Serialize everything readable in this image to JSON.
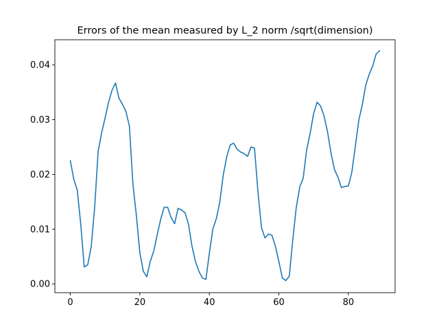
{
  "chart_data": {
    "type": "line",
    "title": "Errors of the mean measured by L_2 norm /sqrt(dimension)",
    "xlabel": "",
    "ylabel": "",
    "xlim": [
      -4.45,
      93.45
    ],
    "ylim": [
      -0.0016,
      0.0446
    ],
    "x_ticks": [
      0,
      20,
      40,
      60,
      80
    ],
    "x_tick_labels": [
      "0",
      "20",
      "40",
      "60",
      "80"
    ],
    "y_ticks": [
      0.0,
      0.01,
      0.02,
      0.03,
      0.04
    ],
    "y_tick_labels": [
      "0.00",
      "0.01",
      "0.02",
      "0.03",
      "0.04"
    ],
    "grid": false,
    "legend": "none",
    "series": [
      {
        "color": "#1f77b4",
        "x": [
          0,
          1,
          2,
          3,
          4,
          5,
          6,
          7,
          8,
          9,
          10,
          11,
          12,
          13,
          14,
          15,
          16,
          17,
          18,
          19,
          20,
          21,
          22,
          23,
          24,
          25,
          26,
          27,
          28,
          29,
          30,
          31,
          32,
          33,
          34,
          35,
          36,
          37,
          38,
          39,
          40,
          41,
          42,
          43,
          44,
          45,
          46,
          47,
          48,
          49,
          50,
          51,
          52,
          53,
          54,
          55,
          56,
          57,
          58,
          59,
          60,
          61,
          62,
          63,
          64,
          65,
          66,
          67,
          68,
          69,
          70,
          71,
          72,
          73,
          74,
          75,
          76,
          77,
          78,
          79,
          80,
          81,
          82,
          83,
          84,
          85,
          86,
          87,
          88,
          89
        ],
        "values": [
          0.0225,
          0.0191,
          0.0171,
          0.0109,
          0.0031,
          0.0035,
          0.0068,
          0.014,
          0.0242,
          0.0276,
          0.0303,
          0.0332,
          0.0354,
          0.0367,
          0.0339,
          0.0328,
          0.0315,
          0.0288,
          0.0183,
          0.0125,
          0.0057,
          0.0023,
          0.0013,
          0.0041,
          0.006,
          0.009,
          0.0118,
          0.014,
          0.014,
          0.0121,
          0.011,
          0.0138,
          0.0135,
          0.013,
          0.0109,
          0.0069,
          0.0041,
          0.0023,
          0.0011,
          0.0008,
          0.0056,
          0.01,
          0.0119,
          0.0149,
          0.0199,
          0.0232,
          0.0254,
          0.0257,
          0.0246,
          0.0241,
          0.0238,
          0.0233,
          0.025,
          0.0248,
          0.0167,
          0.0103,
          0.0084,
          0.0091,
          0.0089,
          0.0069,
          0.0041,
          0.0011,
          0.0006,
          0.0014,
          0.008,
          0.0139,
          0.0177,
          0.0193,
          0.0245,
          0.0275,
          0.0311,
          0.0332,
          0.0325,
          0.0307,
          0.0278,
          0.0239,
          0.0209,
          0.0195,
          0.0176,
          0.0178,
          0.0179,
          0.0204,
          0.0251,
          0.0299,
          0.0327,
          0.0363,
          0.0383,
          0.0398,
          0.042,
          0.0426
        ]
      }
    ]
  }
}
